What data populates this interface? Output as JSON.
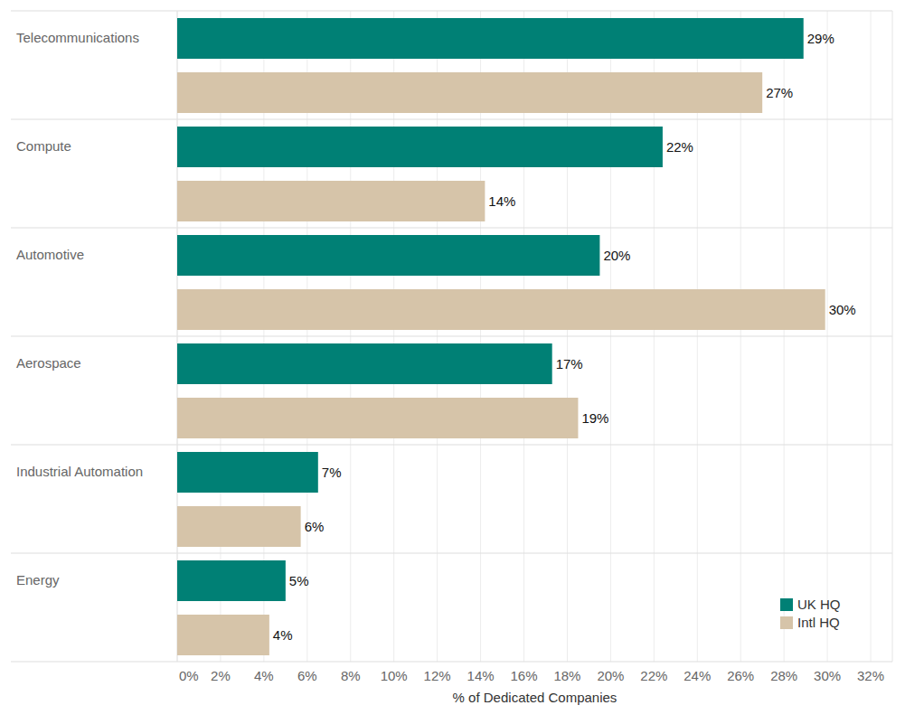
{
  "chart_data": {
    "type": "bar",
    "orientation": "horizontal",
    "x_label": "% of Dedicated Companies",
    "categories": [
      "Telecommunications",
      "Compute",
      "Automotive",
      "Aerospace",
      "Industrial Automation",
      "Energy"
    ],
    "series": [
      {
        "name": "UK HQ",
        "color": "#008075",
        "values": [
          28.9,
          22.4,
          19.5,
          17.3,
          6.5,
          5.0
        ],
        "value_labels": [
          "29%",
          "22%",
          "20%",
          "17%",
          "7%",
          "5%"
        ]
      },
      {
        "name": "Intl HQ",
        "color": "#d6c4a9",
        "values": [
          27.0,
          14.2,
          29.9,
          18.5,
          5.7,
          4.25
        ],
        "value_labels": [
          "27%",
          "14%",
          "30%",
          "19%",
          "6%",
          "4%"
        ]
      }
    ],
    "xlim": [
      0,
      33
    ],
    "xticks": [
      {
        "value": 0,
        "label": "0%"
      },
      {
        "value": 2,
        "label": "2%"
      },
      {
        "value": 4,
        "label": "4%"
      },
      {
        "value": 6,
        "label": "6%"
      },
      {
        "value": 8,
        "label": "8%"
      },
      {
        "value": 10,
        "label": "10%"
      },
      {
        "value": 12,
        "label": "12%"
      },
      {
        "value": 14,
        "label": "14%"
      },
      {
        "value": 16,
        "label": "16%"
      },
      {
        "value": 18,
        "label": "18%"
      },
      {
        "value": 20,
        "label": "20%"
      },
      {
        "value": 22,
        "label": "22%"
      },
      {
        "value": 24,
        "label": "24%"
      },
      {
        "value": 26,
        "label": "26%"
      },
      {
        "value": 28,
        "label": "28%"
      },
      {
        "value": 30,
        "label": "30%"
      },
      {
        "value": 32,
        "label": "32%"
      }
    ],
    "grid": true,
    "data_labels": true,
    "legend": "bottom-right"
  }
}
